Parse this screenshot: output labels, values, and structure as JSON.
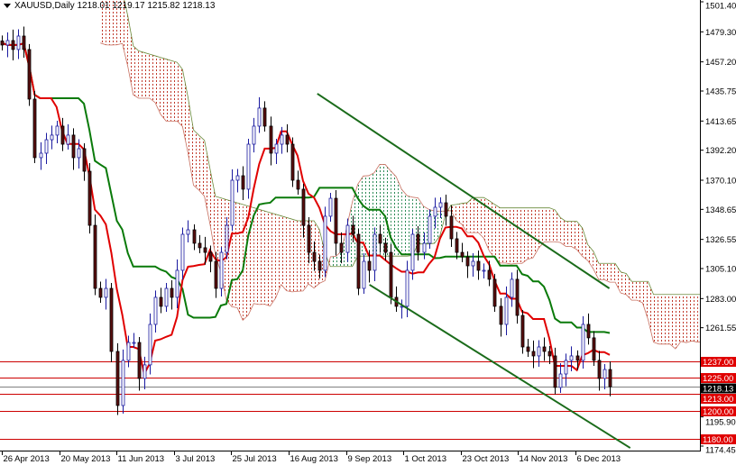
{
  "header": {
    "symbol_timeframe": "XAUUSD,Daily",
    "ohlc": "1218.01 1219.17 1215.82 1218.13"
  },
  "chart_data": {
    "type": "candlestick",
    "symbol": "XAUUSD",
    "timeframe": "Daily",
    "ylim": [
      1174.45,
      1501.4
    ],
    "y_tick_labels": [
      "1501.40",
      "1479.30",
      "1457.20",
      "1435.75",
      "1413.65",
      "1392.20",
      "1370.10",
      "1348.65",
      "1326.55",
      "1305.10",
      "1283.00",
      "1261.55",
      "1195.90",
      "1174.45"
    ],
    "x_tick_labels": [
      "26 Apr 2013",
      "20 May 2013",
      "11 Jun 2013",
      "3 Jul 2013",
      "25 Jul 2013",
      "16 Aug 2013",
      "9 Sep 2013",
      "1 Oct 2013",
      "23 Oct 2013",
      "14 Nov 2013",
      "6 Dec 2013"
    ],
    "close": [
      1469.6,
      1472.9,
      1466.3,
      1476.2,
      1466.3,
      1429.8,
      1386.7,
      1390.0,
      1399.9,
      1403.3,
      1409.9,
      1396.6,
      1403.3,
      1386.7,
      1393.3,
      1376.7,
      1336.9,
      1290.5,
      1283.9,
      1290.5,
      1244.1,
      1204.3,
      1237.5,
      1250.7,
      1250.7,
      1224.2,
      1234.2,
      1264.0,
      1283.9,
      1277.3,
      1290.5,
      1283.9,
      1303.8,
      1330.3,
      1333.6,
      1323.7,
      1320.4,
      1317.0,
      1310.4,
      1290.5,
      1317.0,
      1336.9,
      1370.1,
      1373.4,
      1363.5,
      1396.6,
      1409.9,
      1423.2,
      1409.9,
      1390.0,
      1396.6,
      1403.3,
      1396.6,
      1370.1,
      1363.5,
      1336.9,
      1317.0,
      1310.4,
      1303.8,
      1343.6,
      1356.8,
      1323.7,
      1317.0,
      1336.9,
      1330.3,
      1290.5,
      1310.4,
      1303.8,
      1330.3,
      1323.7,
      1317.0,
      1283.9,
      1277.3,
      1277.3,
      1303.8,
      1330.3,
      1317.0,
      1323.7,
      1343.6,
      1350.2,
      1353.5,
      1343.6,
      1327.0,
      1317.0,
      1313.7,
      1307.1,
      1310.4,
      1303.8,
      1303.8,
      1297.2,
      1277.3,
      1264.0,
      1283.9,
      1297.2,
      1270.6,
      1247.4,
      1244.1,
      1240.8,
      1247.4,
      1244.1,
      1240.8,
      1217.6,
      1227.5,
      1237.5,
      1240.8,
      1237.5,
      1264.0,
      1254.1,
      1237.5,
      1224.2,
      1230.8,
      1218.13
    ],
    "indicators": {
      "ichimoku": {
        "tenkan_color": "#e00000",
        "kijun_color": "#0a7a0a",
        "cloud_bearish_color": "#c0392b",
        "cloud_bullish_color": "#2e8b57"
      }
    },
    "trendlines": [
      {
        "from": {
          "date": "2013-08-28",
          "price": 1433.8
        },
        "to": {
          "date": "2013-12-19",
          "price": 1290.5
        },
        "color": "#1a6b1a"
      },
      {
        "from": {
          "date": "2013-09-18",
          "price": 1293.2
        },
        "to": {
          "date": "2013-12-27",
          "price": 1173.1
        },
        "color": "#1a6b1a"
      }
    ],
    "horizontal_levels": [
      {
        "price": "1237.00",
        "color": "#cc0000"
      },
      {
        "price": "1225.00",
        "color": "#cc0000"
      },
      {
        "price": "1218.13",
        "color": "#808080",
        "label_bg": "#000000"
      },
      {
        "price": "1213.00",
        "color": "#cc0000"
      },
      {
        "price": "1200.00",
        "color": "#cc0000"
      },
      {
        "price": "1180.00",
        "color": "#cc0000"
      }
    ],
    "colors": {
      "bull_body": "#ffffff",
      "bull_outline": "#1a1aa0",
      "bear_body": "#5a0e0e",
      "level_label_bg": "#e00000"
    }
  }
}
